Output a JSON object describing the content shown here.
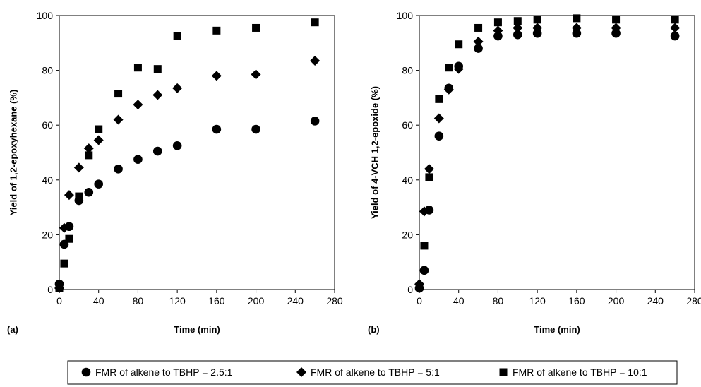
{
  "chart_data": [
    {
      "type": "scatter",
      "panel_label": "(a)",
      "xlabel": "Time (min)",
      "ylabel": "Yield of 1,2-epoxyhexane (%)",
      "xlim": [
        0,
        280
      ],
      "ylim": [
        0,
        100
      ],
      "xticks": [
        "0",
        "40",
        "80",
        "120",
        "160",
        "200",
        "240",
        "280"
      ],
      "yticks": [
        "0",
        "20",
        "40",
        "60",
        "80",
        "100"
      ],
      "grid": false,
      "series": [
        {
          "name": "FMR of alkene to TBHP = 2.5:1",
          "marker": "circle",
          "points": [
            [
              0,
              2
            ],
            [
              5,
              16.5
            ],
            [
              10,
              23
            ],
            [
              20,
              32.5
            ],
            [
              30,
              35.5
            ],
            [
              40,
              38.5
            ],
            [
              60,
              44
            ],
            [
              80,
              47.5
            ],
            [
              100,
              50.5
            ],
            [
              120,
              52.5
            ],
            [
              160,
              58.5
            ],
            [
              200,
              58.5
            ],
            [
              260,
              61.5
            ]
          ]
        },
        {
          "name": "FMR of alkene to TBHP = 5:1",
          "marker": "diamond",
          "points": [
            [
              0,
              0.5
            ],
            [
              5,
              22.5
            ],
            [
              10,
              34.5
            ],
            [
              20,
              44.5
            ],
            [
              30,
              51.5
            ],
            [
              40,
              54.5
            ],
            [
              60,
              62
            ],
            [
              80,
              67.5
            ],
            [
              100,
              71
            ],
            [
              120,
              73.5
            ],
            [
              160,
              78
            ],
            [
              200,
              78.5
            ],
            [
              260,
              83.5
            ]
          ]
        },
        {
          "name": "FMR of alkene to TBHP = 10:1",
          "marker": "square",
          "points": [
            [
              0,
              0.5
            ],
            [
              5,
              9.5
            ],
            [
              10,
              18.5
            ],
            [
              20,
              34
            ],
            [
              30,
              49
            ],
            [
              40,
              58.5
            ],
            [
              60,
              71.5
            ],
            [
              80,
              81
            ],
            [
              100,
              80.5
            ],
            [
              120,
              92.5
            ],
            [
              160,
              94.5
            ],
            [
              200,
              95.5
            ],
            [
              260,
              97.5
            ]
          ]
        }
      ]
    },
    {
      "type": "scatter",
      "panel_label": "(b)",
      "xlabel": "Time (min)",
      "ylabel": "Yield of 4-VCH 1,2-epoxide (%)",
      "xlim": [
        0,
        280
      ],
      "ylim": [
        0,
        100
      ],
      "xticks": [
        "0",
        "40",
        "80",
        "120",
        "160",
        "200",
        "240",
        "280"
      ],
      "yticks": [
        "0",
        "20",
        "40",
        "60",
        "80",
        "100"
      ],
      "grid": false,
      "series": [
        {
          "name": "FMR of alkene to TBHP = 2.5:1",
          "marker": "circle",
          "points": [
            [
              0,
              0.5
            ],
            [
              5,
              7
            ],
            [
              10,
              29
            ],
            [
              20,
              56
            ],
            [
              30,
              73.5
            ],
            [
              40,
              81.5
            ],
            [
              60,
              88
            ],
            [
              80,
              92.5
            ],
            [
              100,
              93
            ],
            [
              120,
              93.5
            ],
            [
              160,
              93.5
            ],
            [
              200,
              93.5
            ],
            [
              260,
              92.5
            ]
          ]
        },
        {
          "name": "FMR of alkene to TBHP = 5:1",
          "marker": "diamond",
          "points": [
            [
              0,
              2
            ],
            [
              5,
              28.5
            ],
            [
              10,
              44
            ],
            [
              20,
              62.5
            ],
            [
              30,
              73
            ],
            [
              40,
              80.5
            ],
            [
              60,
              90.5
            ],
            [
              80,
              94.5
            ],
            [
              100,
              95.5
            ],
            [
              120,
              95.5
            ],
            [
              160,
              95.5
            ],
            [
              200,
              95.5
            ],
            [
              260,
              95.5
            ]
          ]
        },
        {
          "name": "FMR of alkene to TBHP = 10:1",
          "marker": "square",
          "points": [
            [
              0,
              1
            ],
            [
              5,
              16
            ],
            [
              10,
              41
            ],
            [
              20,
              69.5
            ],
            [
              30,
              81
            ],
            [
              40,
              89.5
            ],
            [
              60,
              95.5
            ],
            [
              80,
              97.5
            ],
            [
              100,
              98
            ],
            [
              120,
              98.5
            ],
            [
              160,
              99
            ],
            [
              200,
              98.5
            ],
            [
              260,
              98.5
            ]
          ]
        }
      ]
    }
  ],
  "legend": {
    "position": "bottom-center",
    "items": [
      {
        "label": "FMR of alkene to TBHP = 2.5:1",
        "marker": "circle"
      },
      {
        "label": "FMR of alkene to TBHP = 5:1",
        "marker": "diamond"
      },
      {
        "label": "FMR of alkene to TBHP = 10:1",
        "marker": "square"
      }
    ]
  },
  "colors": {
    "marker": "#000000",
    "axis": "#000000",
    "background": "#ffffff"
  }
}
